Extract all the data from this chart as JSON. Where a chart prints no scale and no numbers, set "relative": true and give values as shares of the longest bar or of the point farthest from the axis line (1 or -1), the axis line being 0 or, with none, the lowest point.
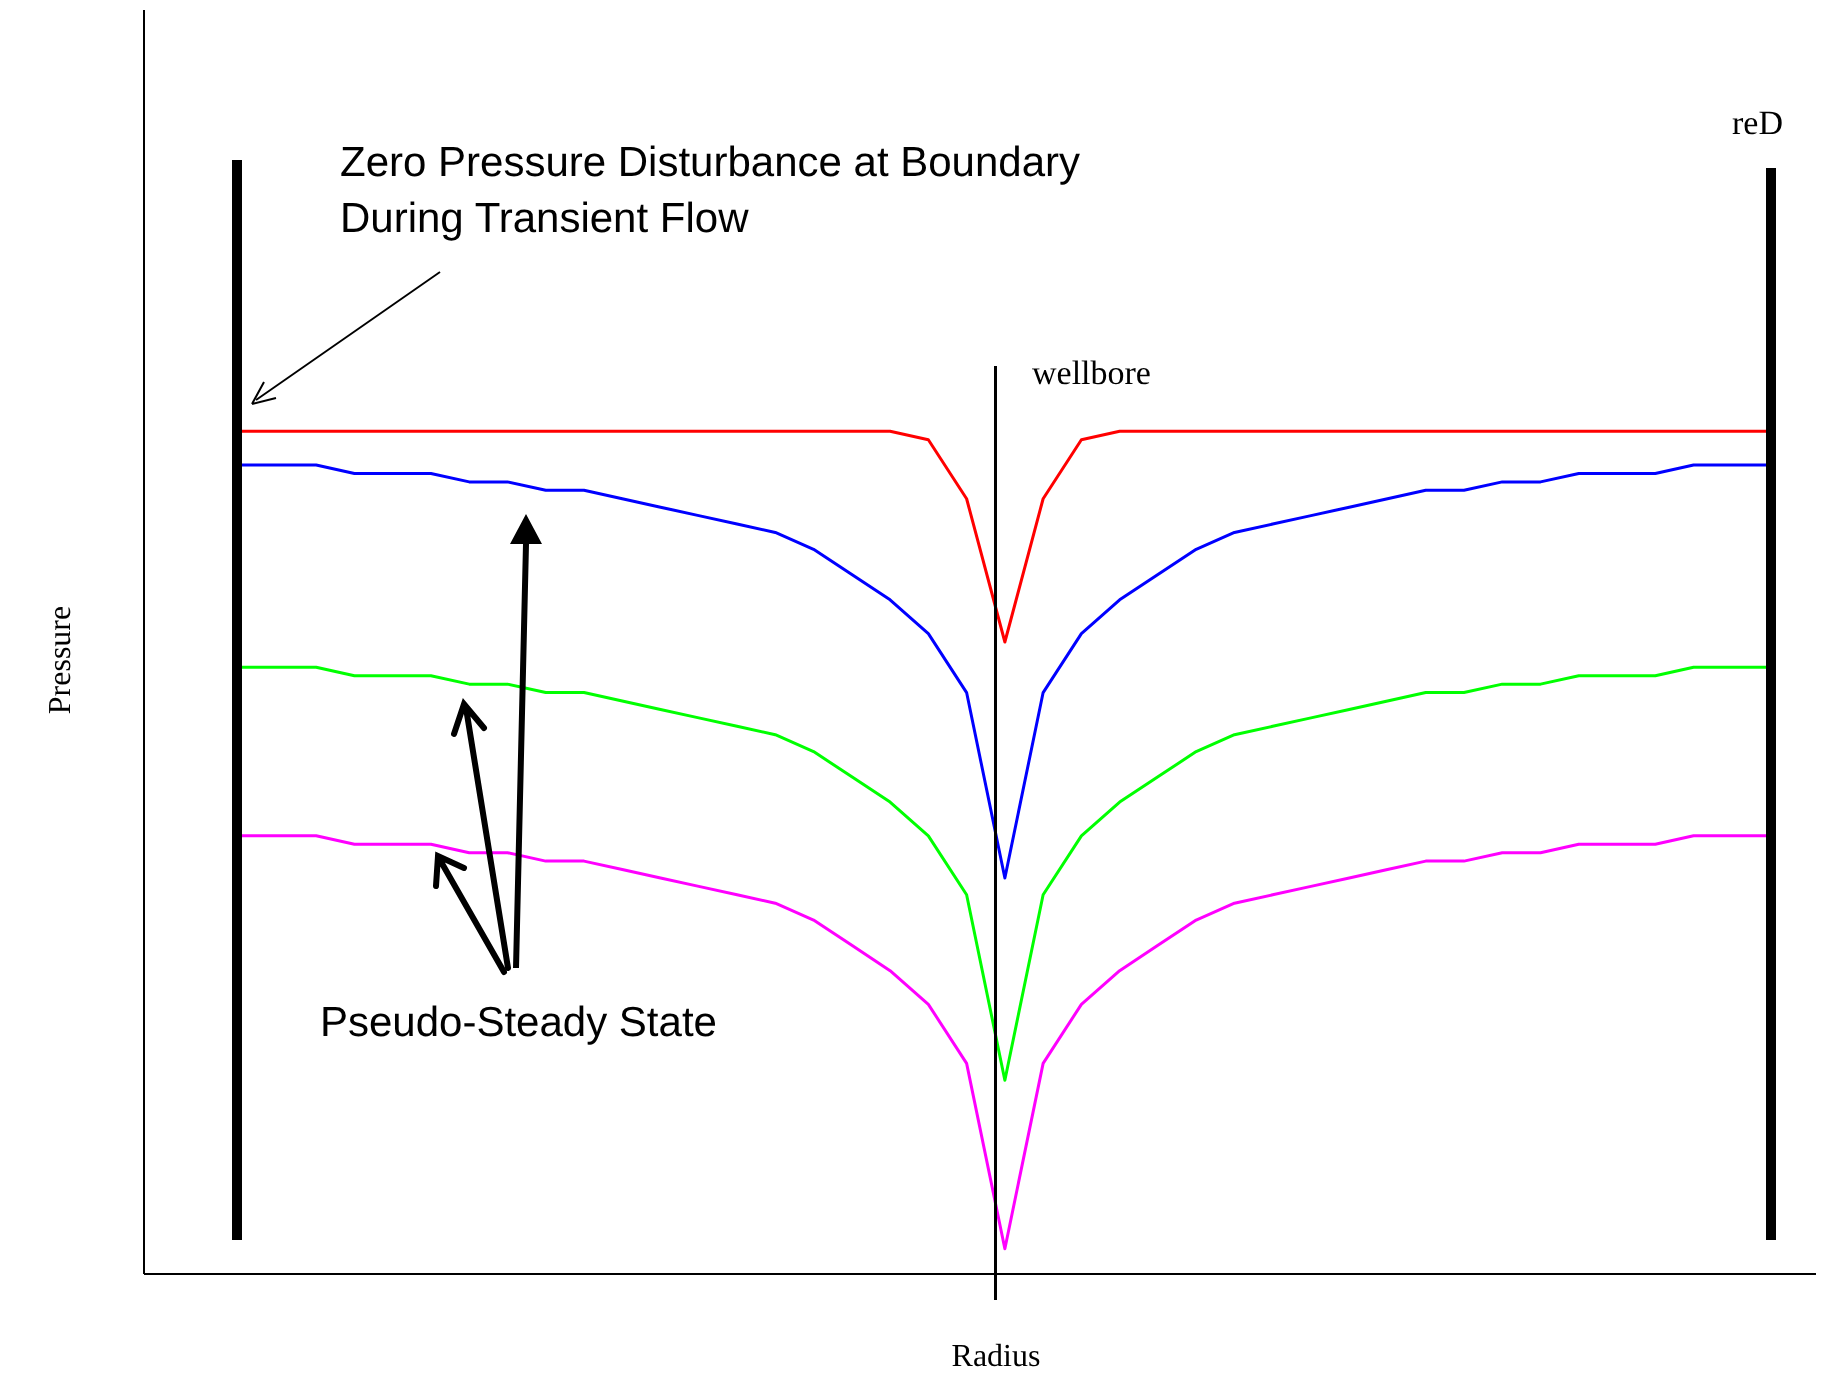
{
  "chart_data": {
    "type": "line",
    "relative": true,
    "xlabel": "Radius",
    "ylabel": "Pressure",
    "line_style": "solid",
    "categories": [
      null,
      null,
      null,
      null,
      null,
      null,
      null,
      null,
      null,
      null,
      null,
      null,
      null,
      null,
      null,
      null,
      null,
      null,
      null,
      null,
      null,
      null,
      null,
      null,
      null,
      null,
      null,
      null,
      null,
      null,
      null,
      null,
      null,
      null,
      null,
      null,
      null,
      null,
      null,
      null,
      null
    ],
    "series": [
      {
        "color": "#ff0000",
        "values": [
          1,
          1,
          1,
          1,
          1,
          1,
          1,
          1,
          1,
          1,
          1,
          1,
          1,
          1,
          1,
          1,
          1,
          1,
          0.99,
          0.92,
          0.75,
          0.92,
          0.99,
          1,
          1,
          1,
          1,
          1,
          1,
          1,
          1,
          1,
          1,
          1,
          1,
          1,
          1,
          1,
          1,
          1,
          1
        ]
      },
      {
        "color": "#0000ff",
        "values": [
          0.96,
          0.96,
          0.96,
          0.95,
          0.95,
          0.95,
          0.94,
          0.94,
          0.93,
          0.93,
          0.92,
          0.91,
          0.9,
          0.89,
          0.88,
          0.86,
          0.83,
          0.8,
          0.76,
          0.69,
          0.47,
          0.69,
          0.76,
          0.8,
          0.83,
          0.86,
          0.88,
          0.89,
          0.9,
          0.91,
          0.92,
          0.93,
          0.93,
          0.94,
          0.94,
          0.95,
          0.95,
          0.95,
          0.96,
          0.96,
          0.96
        ]
      },
      {
        "color": "#00ff00",
        "values": [
          0.72,
          0.72,
          0.72,
          0.71,
          0.71,
          0.71,
          0.7,
          0.7,
          0.69,
          0.69,
          0.68,
          0.67,
          0.66,
          0.65,
          0.64,
          0.62,
          0.59,
          0.56,
          0.52,
          0.45,
          0.23,
          0.45,
          0.52,
          0.56,
          0.59,
          0.62,
          0.64,
          0.65,
          0.66,
          0.67,
          0.68,
          0.69,
          0.69,
          0.7,
          0.7,
          0.71,
          0.71,
          0.71,
          0.72,
          0.72,
          0.72
        ]
      },
      {
        "color": "#ff00ff",
        "values": [
          0.52,
          0.52,
          0.52,
          0.51,
          0.51,
          0.51,
          0.5,
          0.5,
          0.49,
          0.49,
          0.48,
          0.47,
          0.46,
          0.45,
          0.44,
          0.42,
          0.39,
          0.36,
          0.32,
          0.25,
          0.03,
          0.25,
          0.32,
          0.36,
          0.39,
          0.42,
          0.44,
          0.45,
          0.46,
          0.47,
          0.48,
          0.49,
          0.49,
          0.5,
          0.5,
          0.51,
          0.51,
          0.51,
          0.52,
          0.52,
          0.52
        ]
      }
    ],
    "annotations": [
      "Zero Pressure Disturbance at Boundary During Transient Flow",
      "wellbore",
      "reD",
      "Pseudo-Steady State"
    ]
  }
}
